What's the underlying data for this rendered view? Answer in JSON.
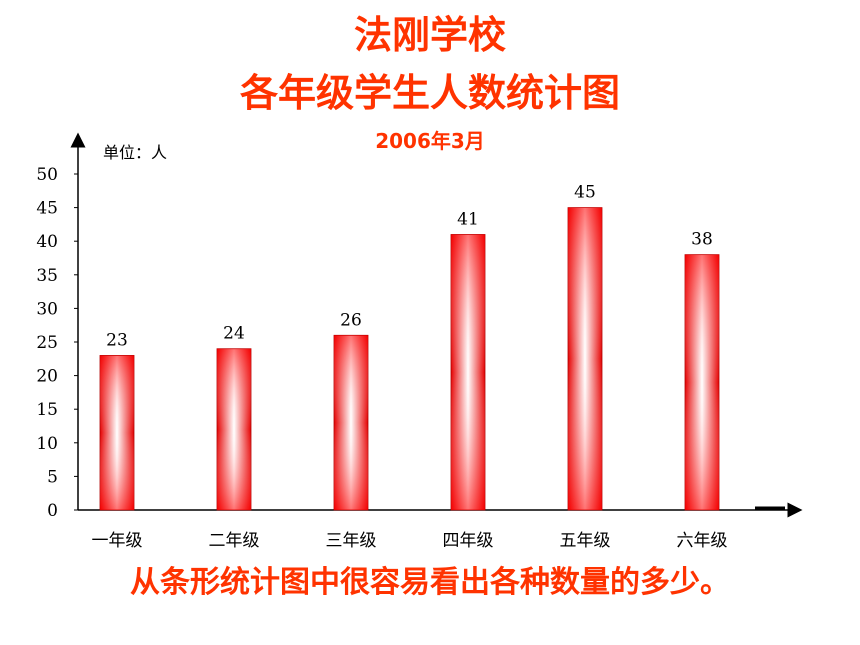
{
  "title_line1": "法刚学校",
  "title_line2": "各年级学生人数统计图",
  "date": "2006年3月",
  "unit_label": "单位：人",
  "footer": "从条形统计图中很容易看出各种数量的多少。",
  "colors": {
    "title": "#ff3300",
    "bar_edge": "#e00000",
    "bar_center": "#ffffff"
  },
  "chart_data": {
    "type": "bar",
    "categories": [
      "一年级",
      "二年级",
      "三年级",
      "四年级",
      "五年级",
      "六年级"
    ],
    "values": [
      23,
      24,
      26,
      41,
      45,
      38
    ],
    "ylim": [
      0,
      50
    ],
    "yticks": [
      0,
      5,
      10,
      15,
      20,
      25,
      30,
      35,
      40,
      45,
      50
    ],
    "ylabel": "单位：人",
    "data_labels": true,
    "grid": false
  }
}
